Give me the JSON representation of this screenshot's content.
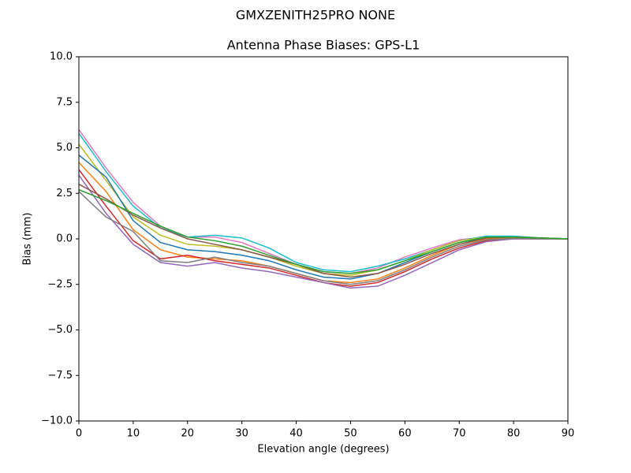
{
  "chart_data": {
    "type": "line",
    "suptitle": "GMXZENITH25PRO  NONE",
    "title": "Antenna Phase Biases: GPS-L1",
    "x_label": "Elevation angle (degrees)",
    "y_label": "Bias (mm)",
    "x": [
      0,
      5,
      10,
      15,
      20,
      25,
      30,
      35,
      40,
      45,
      50,
      55,
      60,
      65,
      70,
      75,
      80,
      85,
      90
    ],
    "xlim": [
      0,
      90
    ],
    "xticks": [
      0,
      10,
      20,
      30,
      40,
      50,
      60,
      70,
      80,
      90
    ],
    "ylim": [
      -10,
      10
    ],
    "yticks": [
      {
        "value": -10,
        "label": "−10.0"
      },
      {
        "value": -7.5,
        "label": "−7.5"
      },
      {
        "value": -5,
        "label": "−5.0"
      },
      {
        "value": -2.5,
        "label": "−2.5"
      },
      {
        "value": 0,
        "label": "0.0"
      },
      {
        "value": 2.5,
        "label": "2.5"
      },
      {
        "value": 5,
        "label": "5.0"
      },
      {
        "value": 7.5,
        "label": "7.5"
      },
      {
        "value": 10,
        "label": "10.0"
      }
    ],
    "series": [
      {
        "color": "#e377c2",
        "values": [
          6.0,
          3.9,
          2.0,
          0.7,
          0.1,
          0.1,
          -0.2,
          -0.8,
          -1.4,
          -1.8,
          -1.9,
          -1.6,
          -1.0,
          -0.5,
          -0.05,
          0.1,
          0.1,
          0.05,
          0
        ]
      },
      {
        "color": "#17becf",
        "values": [
          5.8,
          3.7,
          1.8,
          0.6,
          0.1,
          0.2,
          0.05,
          -0.5,
          -1.3,
          -1.7,
          -1.8,
          -1.5,
          -1.1,
          -0.6,
          -0.1,
          0.15,
          0.15,
          0.05,
          0
        ]
      },
      {
        "color": "#bcbd22",
        "values": [
          5.2,
          3.2,
          1.2,
          0.2,
          -0.3,
          -0.4,
          -0.6,
          -1.0,
          -1.5,
          -1.9,
          -2.0,
          -1.7,
          -1.2,
          -0.6,
          -0.1,
          0.1,
          0.1,
          0.05,
          0
        ]
      },
      {
        "color": "#1f77b4",
        "values": [
          4.6,
          3.4,
          1.0,
          -0.2,
          -0.6,
          -0.7,
          -0.9,
          -1.2,
          -1.7,
          -2.1,
          -2.2,
          -1.9,
          -1.3,
          -0.7,
          -0.2,
          0.05,
          0.1,
          0.05,
          0
        ]
      },
      {
        "color": "#ff7f0e",
        "values": [
          4.2,
          2.6,
          0.5,
          -0.6,
          -1.0,
          -1.1,
          -1.2,
          -1.5,
          -1.9,
          -2.3,
          -2.4,
          -2.2,
          -1.6,
          -0.9,
          -0.3,
          0,
          0.05,
          0.02,
          0
        ]
      },
      {
        "color": "#d62728",
        "values": [
          3.8,
          1.8,
          -0.1,
          -1.1,
          -0.9,
          -1.2,
          -1.4,
          -1.6,
          -2.0,
          -2.4,
          -2.6,
          -2.4,
          -1.8,
          -1.1,
          -0.5,
          -0.1,
          0,
          0,
          0
        ]
      },
      {
        "color": "#9467bd",
        "values": [
          3.5,
          1.4,
          -0.3,
          -1.3,
          -1.5,
          -1.3,
          -1.6,
          -1.8,
          -2.1,
          -2.4,
          -2.7,
          -2.6,
          -2.0,
          -1.3,
          -0.6,
          -0.15,
          0,
          0,
          0
        ]
      },
      {
        "color": "#8c564b",
        "values": [
          3.0,
          2.2,
          1.3,
          0.6,
          0,
          -0.3,
          -0.6,
          -1.0,
          -1.4,
          -1.9,
          -2.1,
          -1.9,
          -1.4,
          -0.8,
          -0.3,
          0.05,
          0.1,
          0.05,
          0
        ]
      },
      {
        "color": "#7f7f7f",
        "values": [
          2.6,
          1.2,
          0.4,
          -1.2,
          -1.3,
          -1.0,
          -1.3,
          -1.5,
          -1.9,
          -2.3,
          -2.5,
          -2.3,
          -1.7,
          -1.0,
          -0.4,
          -0.05,
          0.02,
          0,
          0
        ]
      },
      {
        "color": "#2ca02c",
        "values": [
          2.7,
          2.1,
          1.4,
          0.7,
          0.1,
          -0.1,
          -0.4,
          -0.9,
          -1.4,
          -1.8,
          -1.9,
          -1.7,
          -1.2,
          -0.7,
          -0.2,
          0.1,
          0.1,
          0.05,
          0
        ]
      }
    ]
  }
}
